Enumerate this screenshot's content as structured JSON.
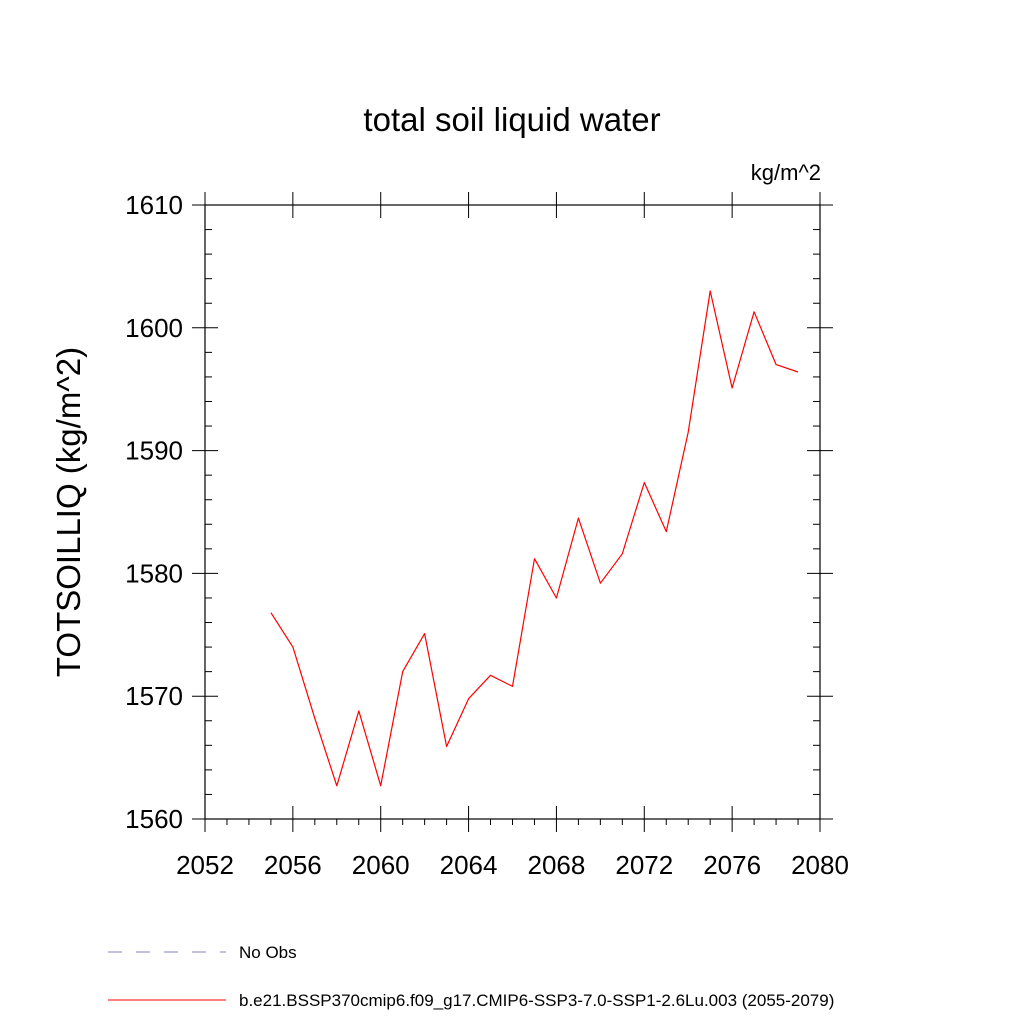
{
  "chart_data": {
    "type": "line",
    "title": "total soil liquid water",
    "units": "kg/m^2",
    "ylabel": "TOTSOILLIQ  (kg/m^2)",
    "xlabel": "",
    "xlim": [
      2052,
      2080
    ],
    "ylim": [
      1560,
      1610
    ],
    "x_ticks": [
      2052,
      2056,
      2060,
      2064,
      2068,
      2072,
      2076,
      2080
    ],
    "y_ticks": [
      1560,
      1570,
      1580,
      1590,
      1600,
      1610
    ],
    "grid": false,
    "legend_placement": "bottom",
    "series": [
      {
        "name": "b.e21.BSSP370cmip6.f09_g17.CMIP6-SSP3-7.0-SSP1-2.6Lu.003 (2055-2079)",
        "color": "#ff0000",
        "style": "solid",
        "x": [
          2055,
          2056,
          2057,
          2058,
          2059,
          2060,
          2061,
          2062,
          2063,
          2064,
          2065,
          2066,
          2067,
          2068,
          2069,
          2070,
          2071,
          2072,
          2073,
          2074,
          2075,
          2076,
          2077,
          2078,
          2079
        ],
        "y": [
          1576.8,
          1574.0,
          1568.2,
          1562.7,
          1568.8,
          1562.7,
          1572.0,
          1575.1,
          1565.9,
          1569.8,
          1571.7,
          1570.8,
          1581.2,
          1578.0,
          1584.5,
          1579.2,
          1581.6,
          1587.4,
          1583.4,
          1591.5,
          1603.0,
          1595.1,
          1601.3,
          1597.0,
          1596.4
        ]
      }
    ],
    "legend": [
      {
        "label": "No Obs",
        "color": "#8080c0",
        "style": "dashed"
      },
      {
        "label": "b.e21.BSSP370cmip6.f09_g17.CMIP6-SSP3-7.0-SSP1-2.6Lu.003 (2055-2079)",
        "color": "#ff0000",
        "style": "solid"
      }
    ]
  }
}
